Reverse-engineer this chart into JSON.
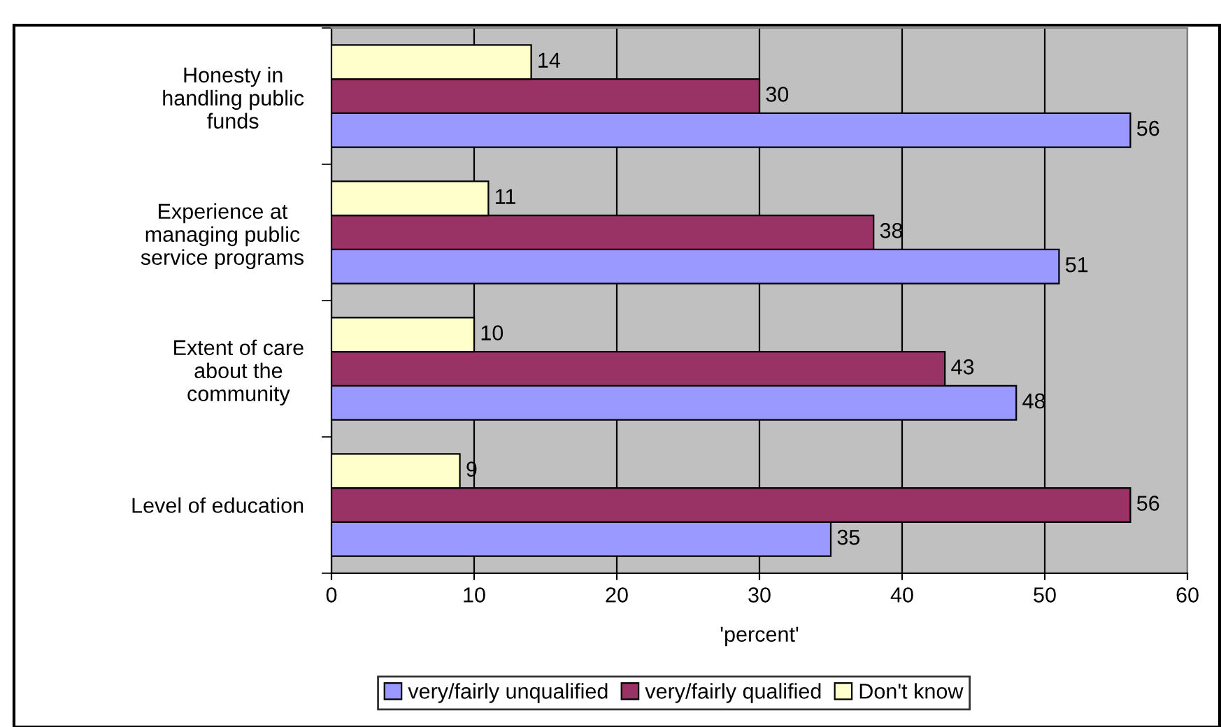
{
  "chart_data": {
    "type": "bar",
    "orientation": "horizontal",
    "xlabel": "'percent'",
    "categories": [
      "Honesty in\nhandling public\nfunds",
      "Experience at\nmanaging public\nservice programs",
      "Extent of care\nabout the\ncommunity",
      "Level of education"
    ],
    "series": [
      {
        "name": "very/fairly unqualified",
        "color": "#9999ff",
        "values": [
          56,
          51,
          48,
          35
        ]
      },
      {
        "name": "very/fairly qualified",
        "color": "#993366",
        "values": [
          30,
          38,
          43,
          56
        ]
      },
      {
        "name": "Don't know",
        "color": "#ffffcc",
        "values": [
          14,
          11,
          10,
          9
        ]
      }
    ],
    "xlim": [
      0,
      60
    ],
    "xticks": [
      0,
      10,
      20,
      30,
      40,
      50,
      60
    ],
    "grid": "x",
    "legend": "bottom",
    "data_labels": true
  }
}
